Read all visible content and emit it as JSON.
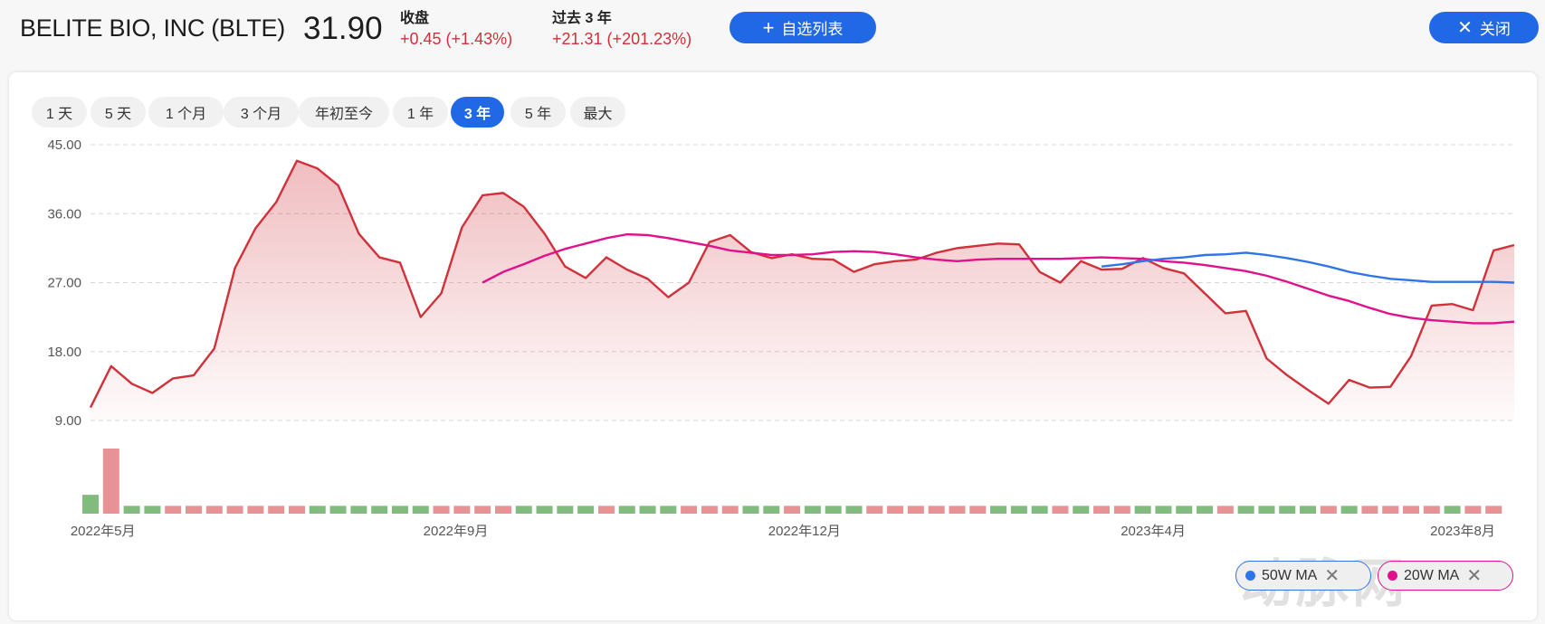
{
  "header": {
    "title": "BELITE BIO, INC (BLTE)",
    "price": "31.90",
    "close_label": "收盘",
    "close_change": "+0.45 (+1.43%)",
    "period_label": "过去 3 年",
    "period_change": "+21.31 (+201.23%)",
    "watchlist_button": "自选列表",
    "watchlist_icon": "plus-icon",
    "close_button": "关闭",
    "close_icon": "x-icon"
  },
  "periods": [
    {
      "label": "1 天",
      "active": false
    },
    {
      "label": "5 天",
      "active": false
    },
    {
      "label": "1 个月",
      "active": false
    },
    {
      "label": "3 个月",
      "active": false
    },
    {
      "label": "年初至今",
      "active": false
    },
    {
      "label": "1 年",
      "active": false
    },
    {
      "label": "3 年",
      "active": true
    },
    {
      "label": "5 年",
      "active": false
    },
    {
      "label": "最大",
      "active": false
    }
  ],
  "legend": [
    {
      "label": "50W MA",
      "color": "#2f74e8"
    },
    {
      "label": "20W MA",
      "color": "#e0118a"
    }
  ],
  "watermark": "动脉网",
  "colors": {
    "accent": "#2068e6",
    "price_line": "#d0313a",
    "up": "#e79295",
    "down": "#82bb7e"
  },
  "chart_data": {
    "type": "line",
    "ylim": [
      9,
      45
    ],
    "yticks": [
      "45.00",
      "36.00",
      "27.00",
      "18.00",
      "9.00"
    ],
    "ytick_values": [
      45,
      36,
      27,
      18,
      9
    ],
    "grid": true,
    "xticks": [
      {
        "label": "2022年5月",
        "index": 0.6
      },
      {
        "label": "2022年9月",
        "index": 17.7
      },
      {
        "label": "2022年12月",
        "index": 34.6
      },
      {
        "label": "2023年4月",
        "index": 51.5
      },
      {
        "label": "2023年8月",
        "index": 66.5
      }
    ],
    "price": [
      10.7,
      16.1,
      13.8,
      12.6,
      14.5,
      14.9,
      18.4,
      28.9,
      34.1,
      37.5,
      42.9,
      41.9,
      39.7,
      33.4,
      30.3,
      29.6,
      22.5,
      25.6,
      34.2,
      38.4,
      38.7,
      36.9,
      33.4,
      29.1,
      27.6,
      30.3,
      28.7,
      27.5,
      25.1,
      27.0,
      32.3,
      33.2,
      31.0,
      30.2,
      30.7,
      30.1,
      30.0,
      28.4,
      29.4,
      29.8,
      30.0,
      30.9,
      31.5,
      31.8,
      32.1,
      32.0,
      28.4,
      27.0,
      29.8,
      28.7,
      28.8,
      30.2,
      28.9,
      28.2,
      25.6,
      23.0,
      23.3,
      17.1,
      14.9,
      13.0,
      11.2,
      14.3,
      13.3,
      13.4,
      17.4,
      24.0,
      24.2,
      23.4,
      31.2,
      31.9
    ],
    "ma20": [
      27.0,
      28.4,
      29.4,
      30.5,
      31.4,
      32.1,
      32.8,
      33.3,
      33.2,
      32.8,
      32.3,
      31.8,
      31.2,
      30.9,
      30.6,
      30.6,
      30.7,
      31.0,
      31.1,
      31.0,
      30.7,
      30.3,
      30.0,
      29.8,
      30.0,
      30.1,
      30.1,
      30.1,
      30.1,
      30.2,
      30.3,
      30.2,
      30.1,
      29.8,
      29.6,
      29.3,
      28.9,
      28.5,
      27.9,
      27.1,
      26.2,
      25.3,
      24.6,
      23.7,
      22.9,
      22.4,
      22.1,
      21.9,
      21.7,
      21.7,
      21.9
    ],
    "ma50": [
      29.1,
      29.4,
      29.8,
      30.1,
      30.3,
      30.6,
      30.7,
      30.9,
      30.6,
      30.2,
      29.7,
      29.1,
      28.4,
      27.9,
      27.5,
      27.3,
      27.1,
      27.1,
      27.1,
      27.1,
      27.0
    ],
    "volume_relative": [
      2.9,
      10,
      1.2,
      1.2,
      1.2,
      1.2,
      1.2,
      1.2,
      1.2,
      1.2,
      1.2,
      1.2,
      1.2,
      1.2,
      1.2,
      1.2,
      1.2,
      1.2,
      1.2,
      1.2,
      1.2,
      1.2,
      1.2,
      1.2,
      1.2,
      1.2,
      1.2,
      1.2,
      1.2,
      1.2,
      1.2,
      1.2,
      1.2,
      1.2,
      1.2,
      1.2,
      1.2,
      1.2,
      1.2,
      1.2,
      1.2,
      1.2,
      1.2,
      1.2,
      1.2,
      1.2,
      1.2,
      1.2,
      1.2,
      1.2,
      1.2,
      1.2,
      1.2,
      1.2,
      1.2,
      1.2,
      1.2,
      1.2,
      1.2,
      1.2,
      1.2,
      1.2,
      1.2,
      1.2,
      1.2,
      1.2,
      1.2,
      1.2,
      1.2
    ],
    "volume_direction": "GRGGRRRRRRRGGGGGGRRRRGGGGRGGGRRRGGRGGGRRRRRRGGGRGRRGGGGRGGGGRGRRRRGRR"
  }
}
